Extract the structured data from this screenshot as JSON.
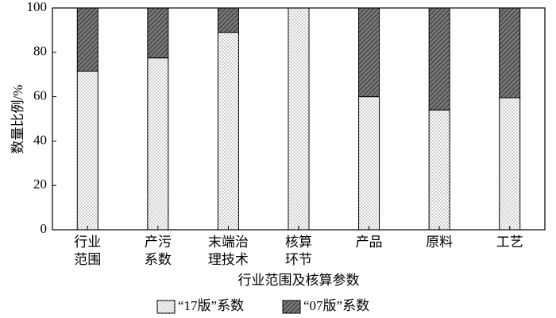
{
  "chart_data": {
    "type": "stacked_bar",
    "categories": [
      [
        "行业",
        "范围"
      ],
      [
        "产污",
        "系数"
      ],
      [
        "末端治",
        "理技术"
      ],
      [
        "核算",
        "环节"
      ],
      [
        "产品"
      ],
      [
        "原料"
      ],
      [
        "工艺"
      ]
    ],
    "series": [
      {
        "name": "“17版”系数",
        "values": [
          71.5,
          77.5,
          89,
          100,
          60,
          54,
          59.5
        ]
      },
      {
        "name": "“07版”系数",
        "values": [
          28.5,
          22.5,
          11,
          0,
          40,
          46,
          40.5
        ]
      }
    ],
    "xlabel": "行业范围及核算参数",
    "ylabel": "数量比例/%",
    "ylim": [
      0,
      100
    ],
    "yticks": [
      0,
      20,
      40,
      60,
      80,
      100
    ],
    "legend": "bottom"
  }
}
